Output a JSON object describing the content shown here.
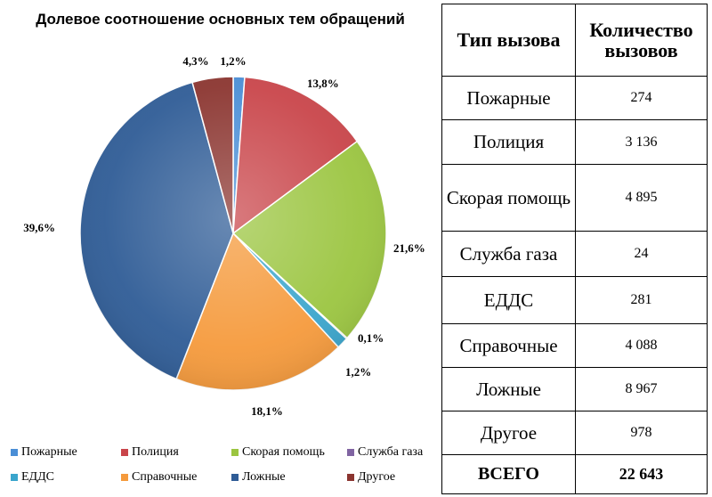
{
  "chart_data": {
    "type": "pie",
    "title": "Долевое соотношение основных тем обращений",
    "legend_position": "bottom",
    "slices": [
      {
        "name": "Пожарные",
        "value": 1.2,
        "label": "1,2%",
        "color": "#4a8ed6"
      },
      {
        "name": "Полиция",
        "value": 13.8,
        "label": "13,8%",
        "color": "#c9454a"
      },
      {
        "name": "Скорая помощь",
        "value": 21.6,
        "label": "21,6%",
        "color": "#9bc540"
      },
      {
        "name": "Служба газа",
        "value": 0.1,
        "label": "0,1%",
        "color": "#8064a2"
      },
      {
        "name": "ЕДДС",
        "value": 1.2,
        "label": "1,2%",
        "color": "#3aa5cc"
      },
      {
        "name": "Справочные",
        "value": 18.1,
        "label": "18,1%",
        "color": "#f59a3c"
      },
      {
        "name": "Ложные",
        "value": 39.6,
        "label": "39,6%",
        "color": "#2f5c96"
      },
      {
        "name": "Другое",
        "value": 4.3,
        "label": "4,3%",
        "color": "#8b3530"
      }
    ]
  },
  "table": {
    "headers": [
      "Тип вызова",
      "Количество вызовов"
    ],
    "rows": [
      {
        "type": "Пожарные",
        "count": "274"
      },
      {
        "type": "Полиция",
        "count": "3 136"
      },
      {
        "type": "Скорая помощь",
        "count": "4 895"
      },
      {
        "type": "Служба газа",
        "count": "24"
      },
      {
        "type": "ЕДДС",
        "count": "281"
      },
      {
        "type": "Справочные",
        "count": "4 088"
      },
      {
        "type": "Ложные",
        "count": "8 967"
      },
      {
        "type": "Другое",
        "count": "978"
      }
    ],
    "total": {
      "type": "ВСЕГО",
      "count": "22 643"
    }
  }
}
